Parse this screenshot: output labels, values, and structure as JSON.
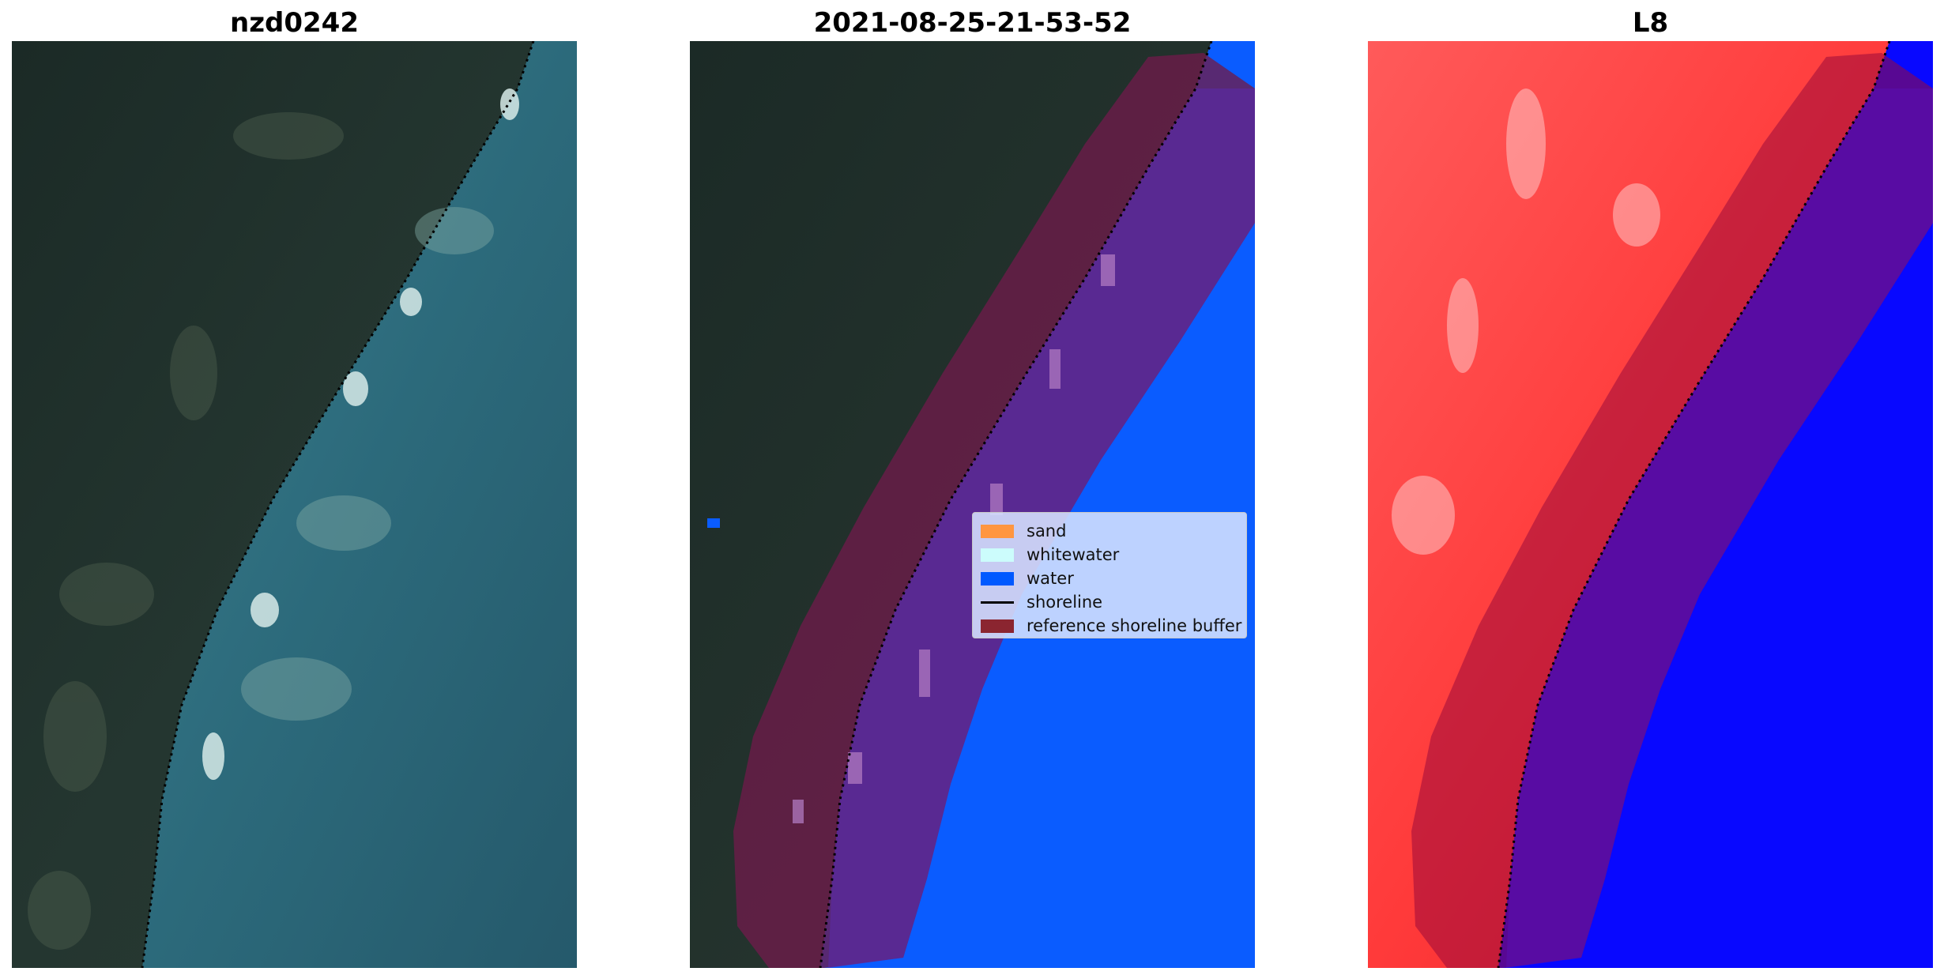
{
  "panels": [
    {
      "title": "nzd0242"
    },
    {
      "title": "2021-08-25-21-53-52"
    },
    {
      "title": "L8"
    }
  ],
  "legend": {
    "items": [
      {
        "label": "sand",
        "color": "#ff9640"
      },
      {
        "label": "whitewater",
        "color": "#ccfcfc"
      },
      {
        "label": "water",
        "color": "#0059ff"
      },
      {
        "label": "shoreline",
        "color": "#000000"
      },
      {
        "label": "reference shoreline buffer",
        "color": "#8b2530"
      }
    ]
  },
  "colors": {
    "land": "#22302b",
    "ocean": "#2f6a7c",
    "water_class": "#0a5cff",
    "buffer_overlay": "#6e1b4a",
    "index_land": "#ff4a4a",
    "index_water": "#0808ff"
  }
}
